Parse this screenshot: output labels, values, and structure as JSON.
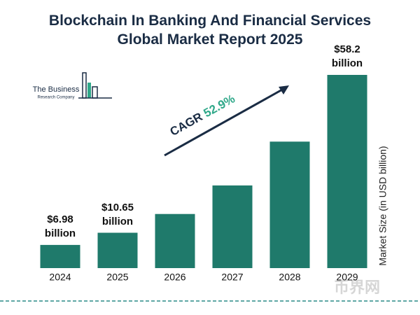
{
  "chart_data": {
    "type": "bar",
    "title": "Blockchain In Banking And Financial Services Global Market Report 2025",
    "categories": [
      "2024",
      "2025",
      "2026",
      "2027",
      "2028",
      "2029"
    ],
    "values": [
      6.98,
      10.65,
      16.3,
      24.9,
      38.1,
      58.2
    ],
    "value_labels": [
      "$6.98 billion",
      "$10.65 billion",
      null,
      null,
      null,
      "$58.2 billion"
    ],
    "color": "#1f7a6b",
    "y_label": "Market Size (in USD billion)",
    "cagr_text": "CAGR",
    "cagr_rate": "52.9%",
    "logo_line1": "The Business",
    "logo_line2": "Research Company",
    "watermark": "币界网"
  }
}
